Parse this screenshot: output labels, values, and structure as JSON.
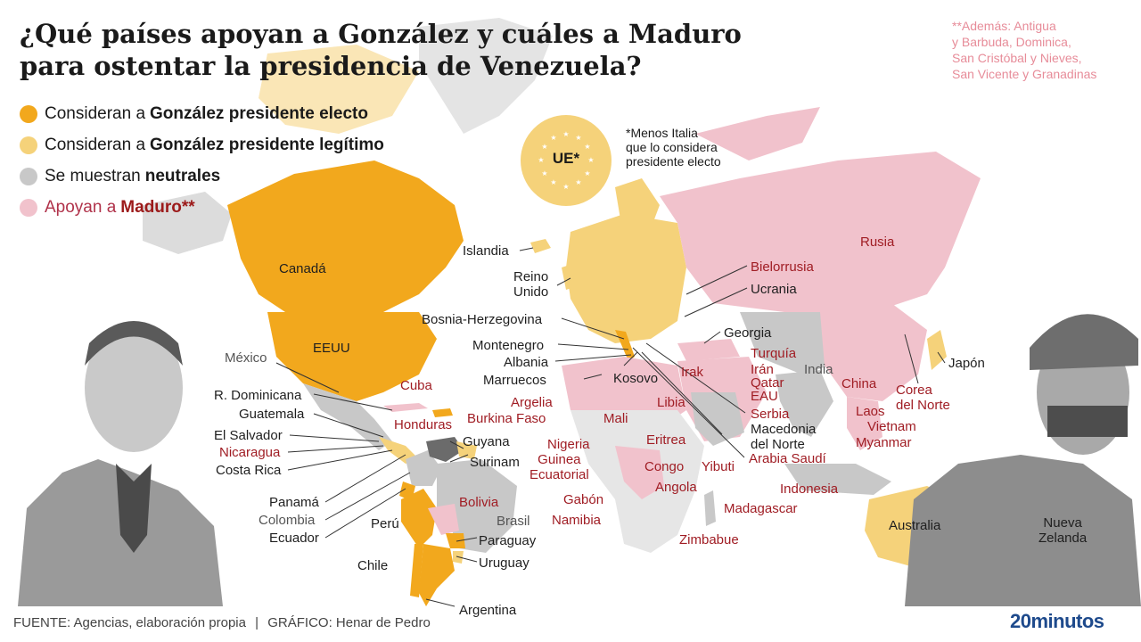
{
  "title": {
    "line1": "¿Qué países apoyan a González y cuáles a Maduro",
    "line2": "para ostentar la presidencia de Venezuela?"
  },
  "legend": [
    {
      "prefix": "Consideran a",
      "bold": "González presidente electo",
      "color": "#f2a81d"
    },
    {
      "prefix": "Consideran a",
      "bold": "González presidente legítimo",
      "color": "#f5d27a"
    },
    {
      "prefix": "Se muestran",
      "bold": "neutrales",
      "color": "#c8c8c8"
    },
    {
      "prefix": "Apoyan a",
      "bold": "Maduro**",
      "color": "#f1c2cc"
    }
  ],
  "note_top": {
    "line1": "**Además: Antigua",
    "line2": "y Barbuda, Dominica,",
    "line3": "San Cristóbal y Nieves,",
    "line4": "San Vicente y Granadinas"
  },
  "ue": {
    "label": "UE*",
    "note_line1": "*Menos Italia",
    "note_line2": "que lo considera",
    "note_line3": "presidente electo"
  },
  "labels": {
    "canada": "Canadá",
    "eeuu": "EEUU",
    "mexico": "México",
    "cuba": "Cuba",
    "rdominicana": "R. Dominicana",
    "guatemala": "Guatemala",
    "honduras": "Honduras",
    "elsalvador": "El Salvador",
    "nicaragua": "Nicaragua",
    "costarica": "Costa Rica",
    "panama": "Panamá",
    "colombia": "Colombia",
    "ecuador": "Ecuador",
    "peru": "Perú",
    "chile": "Chile",
    "guyana": "Guyana",
    "surinam": "Surinam",
    "bolivia": "Bolivia",
    "brasil": "Brasil",
    "paraguay": "Paraguay",
    "uruguay": "Uruguay",
    "argentina": "Argentina",
    "islandia": "Islandia",
    "reino_unido_1": "Reino",
    "reino_unido_2": "Unido",
    "bosnia": "Bosnia-Herzegovina",
    "montenegro": "Montenegro",
    "albania": "Albania",
    "marruecos": "Marruecos",
    "kosovo": "Kosovo",
    "argelia": "Argelia",
    "libia": "Libia",
    "burkina": "Burkina Faso",
    "mali": "Mali",
    "nigeria": "Nigeria",
    "guinea_1": "Guinea",
    "guinea_2": "Ecuatorial",
    "eritrea": "Eritrea",
    "congo": "Congo",
    "yibuti": "Yibuti",
    "angola": "Angola",
    "gabon": "Gabón",
    "namibia": "Namibia",
    "madagascar": "Madagascar",
    "zimbabue": "Zimbabue",
    "rusia": "Rusia",
    "bielorrusia": "Bielorrusia",
    "ucrania": "Ucrania",
    "georgia": "Georgia",
    "turquia": "Turquía",
    "irak": "Irak",
    "iran": "Irán",
    "qatar": "Qatar",
    "eau": "EAU",
    "india": "India",
    "china": "China",
    "serbia": "Serbia",
    "macedonia_1": "Macedonia",
    "macedonia_2": "del Norte",
    "arabia": "Arabia Saudí",
    "laos": "Laos",
    "vietnam": "Vietnam",
    "myanmar": "Myanmar",
    "corea_1": "Corea",
    "corea_2": "del Norte",
    "japon": "Japón",
    "indonesia": "Indonesia",
    "australia": "Australia",
    "nz_1": "Nueva",
    "nz_2": "Zelanda"
  },
  "footer": {
    "source": "FUENTE: Agencias, elaboración propia",
    "separator": "|",
    "graphic": "GRÁFICO: Henar de Pedro"
  },
  "brand": "20minutos",
  "colors": {
    "electo": "#f2a81d",
    "legitimo": "#f5d27a",
    "neutral": "#c8c8c8",
    "maduro": "#f1c2cc",
    "venezuela": "#6b6b6b",
    "label_maduro": "#a01d24"
  }
}
